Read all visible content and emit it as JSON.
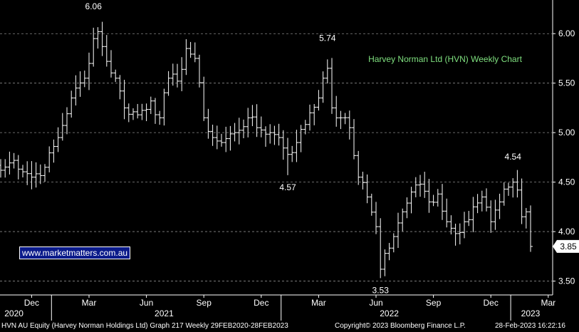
{
  "chart_data": {
    "type": "ohlc",
    "title": "Harvey Norman Ltd (HVN) Weekly Chart",
    "xlabel": "",
    "ylabel": "",
    "ylim": [
      3.36,
      6.34
    ],
    "y_ticks": [
      3.5,
      4.0,
      4.5,
      5.0,
      5.5,
      6.0
    ],
    "y_tick_labels": [
      "3.50",
      "4.00",
      "4.50",
      "5.00",
      "5.50",
      "6.00"
    ],
    "grid": true,
    "month_ticks": [
      {
        "label": "Dec",
        "week": 7
      },
      {
        "label": "Mar",
        "week": 20
      },
      {
        "label": "Jun",
        "week": 33
      },
      {
        "label": "Sep",
        "week": 46
      },
      {
        "label": "Dec",
        "week": 59
      },
      {
        "label": "Mar",
        "week": 72
      },
      {
        "label": "Jun",
        "week": 85
      },
      {
        "label": "Sep",
        "week": 98
      },
      {
        "label": "Dec",
        "week": 111
      },
      {
        "label": "Mar",
        "week": 124
      }
    ],
    "year_labels": [
      {
        "label": "2020",
        "week": 3
      },
      {
        "label": "2021",
        "week": 37
      },
      {
        "label": "2022",
        "week": 88
      },
      {
        "label": "2023",
        "week": 120
      }
    ],
    "year_separators": [
      11.5,
      63.5,
      115.5
    ],
    "anchors": [
      [
        0,
        4.62
      ],
      [
        3,
        4.72
      ],
      [
        7,
        4.55
      ],
      [
        10,
        4.65
      ],
      [
        13,
        4.95
      ],
      [
        16,
        5.35
      ],
      [
        19,
        5.55
      ],
      [
        21,
        5.95
      ],
      [
        22,
        6.02
      ],
      [
        24,
        5.72
      ],
      [
        26,
        5.55
      ],
      [
        28,
        5.25
      ],
      [
        31,
        5.18
      ],
      [
        34,
        5.32
      ],
      [
        36,
        5.15
      ],
      [
        38,
        5.55
      ],
      [
        40,
        5.52
      ],
      [
        42,
        5.85
      ],
      [
        44,
        5.75
      ],
      [
        46,
        5.15
      ],
      [
        48,
        4.95
      ],
      [
        50,
        4.9
      ],
      [
        53,
        5.0
      ],
      [
        56,
        5.15
      ],
      [
        58,
        5.05
      ],
      [
        61,
        5.0
      ],
      [
        63,
        4.95
      ],
      [
        65,
        4.78
      ],
      [
        67,
        4.9
      ],
      [
        70,
        5.2
      ],
      [
        72,
        5.35
      ],
      [
        73,
        5.55
      ],
      [
        74,
        5.65
      ],
      [
        75,
        5.25
      ],
      [
        77,
        5.15
      ],
      [
        79,
        5.05
      ],
      [
        81,
        4.55
      ],
      [
        83,
        4.35
      ],
      [
        85,
        4.05
      ],
      [
        86,
        3.62
      ],
      [
        87,
        3.78
      ],
      [
        89,
        3.95
      ],
      [
        91,
        4.2
      ],
      [
        93,
        4.4
      ],
      [
        95,
        4.48
      ],
      [
        97,
        4.3
      ],
      [
        99,
        4.38
      ],
      [
        101,
        4.1
      ],
      [
        103,
        3.98
      ],
      [
        105,
        4.1
      ],
      [
        107,
        4.25
      ],
      [
        109,
        4.35
      ],
      [
        111,
        4.1
      ],
      [
        113,
        4.3
      ],
      [
        115,
        4.45
      ],
      [
        116,
        4.5
      ],
      [
        117,
        4.42
      ],
      [
        118,
        4.15
      ],
      [
        119,
        4.2
      ],
      [
        120,
        3.85
      ]
    ],
    "annotations": [
      {
        "text": "6.06",
        "week": 21,
        "value": 6.06,
        "position": "above"
      },
      {
        "text": "5.74",
        "week": 74,
        "value": 5.74,
        "position": "above"
      },
      {
        "text": "4.57",
        "week": 65,
        "value": 4.57,
        "position": "below"
      },
      {
        "text": "3.53",
        "week": 86,
        "value": 3.53,
        "position": "below"
      },
      {
        "text": "4.54",
        "week": 116,
        "value": 4.54,
        "position": "above"
      }
    ],
    "last_price": {
      "text": "3.85",
      "value": 3.85
    }
  },
  "watermark": "www.marketmatters.com.au",
  "footer": {
    "left": "HVN AU Equity (Harvey Norman Holdings Ltd) Graph 217  Weekly 29FEB2020-28FEB2023",
    "center": "Copyright© 2023 Bloomberg Finance L.P.",
    "right": "28-Feb-2023 16:22:16"
  },
  "colors": {
    "background": "#000000",
    "bars": "#ffffff",
    "title": "#7fe07f",
    "watermark_bg": "#0a1a8a"
  }
}
